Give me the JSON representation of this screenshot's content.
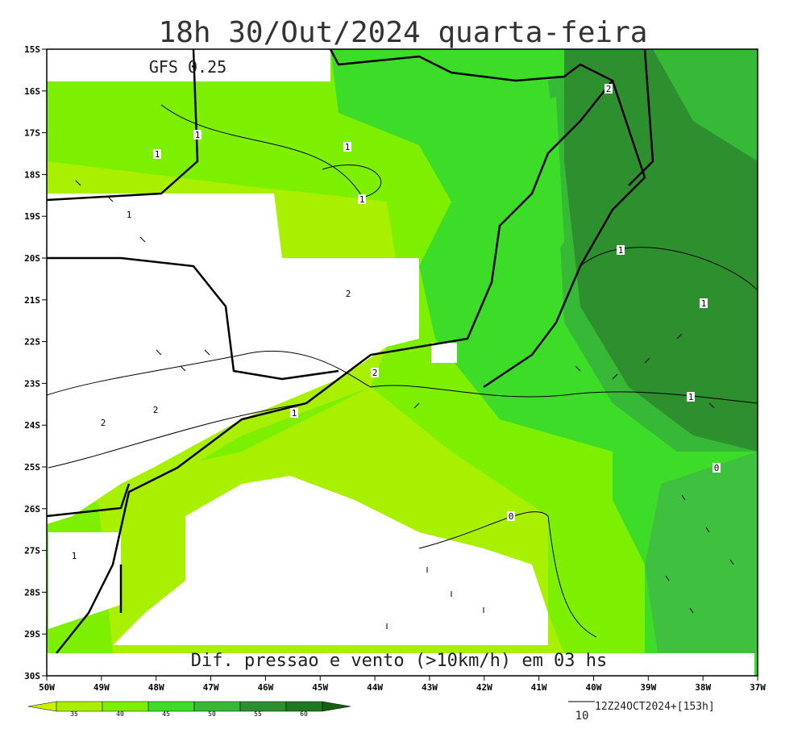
{
  "header": {
    "title": "18h 30/Out/2024 quarta-feira",
    "model_label": "GFS 0.25",
    "caption": "Dif. pressao e vento (>10km/h) em 03 hs"
  },
  "lat_labels": [
    "15S",
    "16S",
    "17S",
    "18S",
    "19S",
    "20S",
    "21S",
    "22S",
    "23S",
    "24S",
    "25S",
    "26S",
    "27S",
    "28S",
    "29S",
    "30S"
  ],
  "lon_labels": [
    "50W",
    "49W",
    "48W",
    "47W",
    "46W",
    "45W",
    "44W",
    "43W",
    "42W",
    "41W",
    "40W",
    "39W",
    "38W",
    "37W"
  ],
  "contour_labels": [
    "1",
    "1",
    "1",
    "1",
    "2",
    "1",
    "2",
    "2",
    "2",
    "1",
    "1",
    "1",
    "1",
    "0",
    "0",
    "1",
    "2"
  ],
  "colorbar": {
    "labels": [
      "35",
      "40",
      "45",
      "50",
      "55",
      "60"
    ]
  },
  "scale": {
    "label": "10"
  },
  "run_info": "12Z24OCT2024+[153h]"
}
